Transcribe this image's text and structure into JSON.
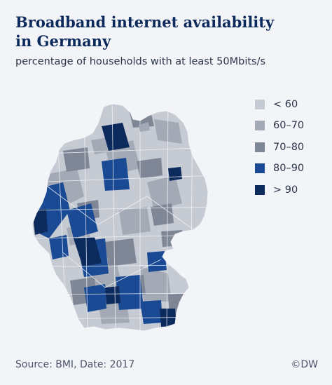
{
  "header": {
    "title_line1": "Broadband internet availability",
    "title_line2": "in Germany",
    "subtitle": "percentage of households with at least 50Mbits/s"
  },
  "legend": {
    "items": [
      {
        "label": "< 60",
        "color": "#c6cbd3"
      },
      {
        "label": "60–70",
        "color": "#a3aab6"
      },
      {
        "label": "70–80",
        "color": "#7f8796"
      },
      {
        "label": "80–90",
        "color": "#1a4a94"
      },
      {
        "label": "> 90",
        "color": "#0d2a5c"
      }
    ]
  },
  "footer": {
    "source": "Source: BMI, Date: 2017",
    "credit": "©DW"
  },
  "map": {
    "region": "Germany",
    "classification": "broadband availability by district"
  }
}
